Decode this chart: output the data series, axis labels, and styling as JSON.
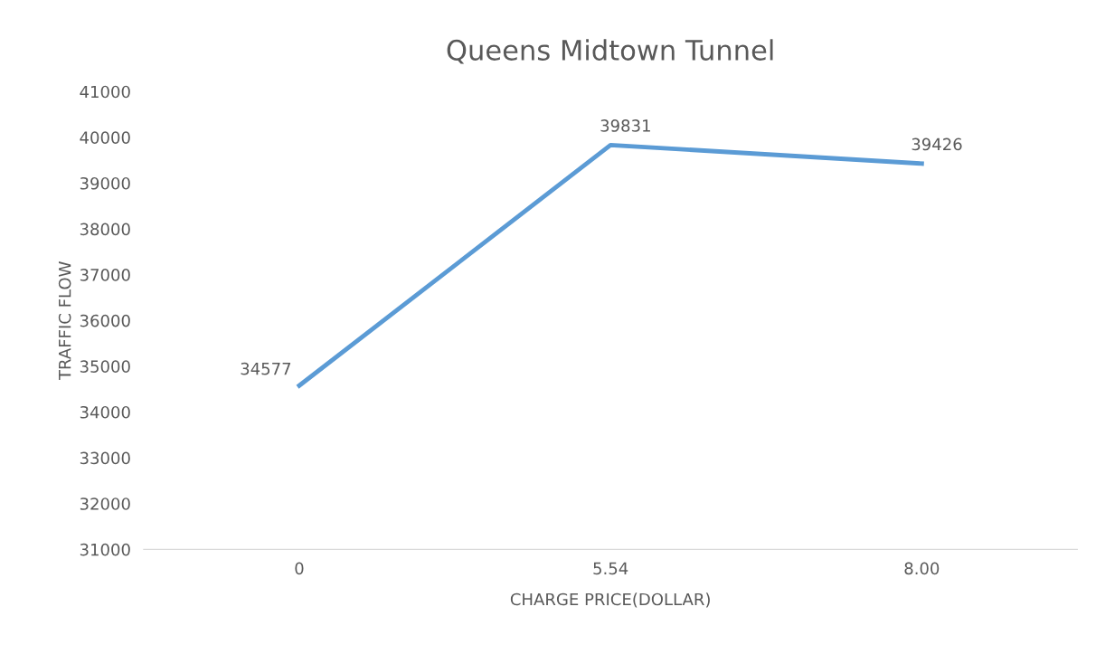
{
  "chart_data": {
    "type": "line",
    "title": "Queens Midtown Tunnel",
    "xlabel": "CHARGE PRICE(DOLLAR)",
    "ylabel": "TRAFFIC FLOW",
    "categories": [
      "0",
      "5.54",
      "8.00"
    ],
    "series": [
      {
        "color": "#5b9bd5",
        "values": [
          34577,
          39831,
          39426
        ]
      }
    ],
    "ylim": [
      31000,
      41000
    ],
    "yticks": [
      31000,
      32000,
      33000,
      34000,
      35000,
      36000,
      37000,
      38000,
      39000,
      40000,
      41000
    ],
    "data_labels": true,
    "grid": false,
    "legend": false,
    "marker": "none",
    "line_style": "solid"
  }
}
